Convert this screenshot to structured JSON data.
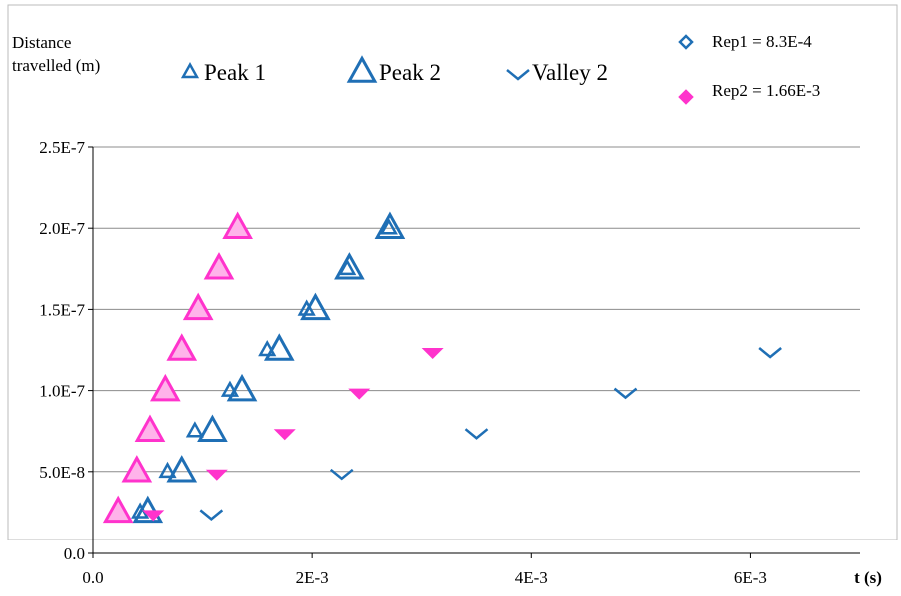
{
  "chart_data": {
    "type": "scatter",
    "ylabel": "Distance travelled (m)",
    "xlabel": "t (s)",
    "xlim": [
      0,
      0.007
    ],
    "ylim": [
      0,
      2.5e-07
    ],
    "xticks": [
      {
        "value": 0,
        "label": "0.0"
      },
      {
        "value": 0.002,
        "label": "2E-3"
      },
      {
        "value": 0.004,
        "label": "4E-3"
      },
      {
        "value": 0.006,
        "label": "6E-3"
      }
    ],
    "yticks": [
      {
        "value": 0,
        "label": "0.0"
      },
      {
        "value": 5e-08,
        "label": "5.0E-8"
      },
      {
        "value": 1e-07,
        "label": "1.0E-7"
      },
      {
        "value": 1.5e-07,
        "label": "1.5E-7"
      },
      {
        "value": 2e-07,
        "label": "2.0E-7"
      },
      {
        "value": 2.5e-07,
        "label": "2.5E-7"
      }
    ],
    "grid": true,
    "reps": [
      {
        "name": "Rep1 = 8.3E-4",
        "color": "#1f6fb5",
        "filled": false
      },
      {
        "name": "Rep2 = 1.66E-3",
        "color": "#ff33cc",
        "filled": true
      }
    ],
    "series": [
      {
        "name": "Peak 1",
        "marker": "triangle-small",
        "rep_points": [
          {
            "x": [
              0.00043,
              0.00068,
              0.00093,
              0.00125,
              0.00159,
              0.00195,
              0.00232,
              0.0027
            ],
            "y": [
              2.5e-08,
              5e-08,
              7.5e-08,
              1e-07,
              1.25e-07,
              1.5e-07,
              1.75e-07,
              2e-07
            ]
          },
          {
            "x": [
              0.00023,
              0.00038,
              0.0005,
              0.00064,
              0.00079,
              0.00095,
              0.00113,
              0.00131
            ],
            "y": [
              2.5e-08,
              5e-08,
              7.5e-08,
              1e-07,
              1.25e-07,
              1.5e-07,
              1.75e-07,
              2e-07
            ]
          }
        ]
      },
      {
        "name": "Peak 2",
        "marker": "triangle-large",
        "rep_points": [
          {
            "x": [
              0.0005,
              0.00081,
              0.00109,
              0.00136,
              0.0017,
              0.00203,
              0.00234,
              0.00271
            ],
            "y": [
              2.5e-08,
              5e-08,
              7.5e-08,
              1e-07,
              1.25e-07,
              1.5e-07,
              1.75e-07,
              2e-07
            ]
          },
          {
            "x": [
              0.00023,
              0.0004,
              0.00052,
              0.00066,
              0.00081,
              0.00096,
              0.00115,
              0.00132
            ],
            "y": [
              2.5e-08,
              5e-08,
              7.5e-08,
              1e-07,
              1.25e-07,
              1.5e-07,
              1.75e-07,
              2e-07
            ]
          }
        ]
      },
      {
        "name": "Valley 2",
        "marker": "valley",
        "rep_points": [
          {
            "x": [
              0.00108,
              0.00227,
              0.0035,
              0.00486,
              0.00618
            ],
            "y": [
              2.5e-08,
              5e-08,
              7.5e-08,
              1e-07,
              1.25e-07
            ]
          },
          {
            "x": [
              0.00055,
              0.00113,
              0.00175,
              0.00243,
              0.0031
            ],
            "y": [
              2.5e-08,
              5e-08,
              7.5e-08,
              1e-07,
              1.25e-07
            ]
          }
        ]
      }
    ]
  }
}
